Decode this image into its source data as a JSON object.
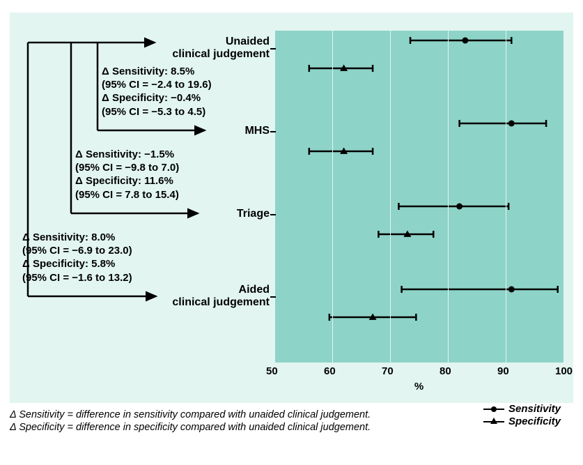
{
  "chart": {
    "type": "forest-plot",
    "outer_bg": "#e2f5f1",
    "plot_bg": "#8ed3c8",
    "grid_color": "#e2f5f1",
    "x_axis": {
      "label": "%",
      "min": 50,
      "max": 100,
      "ticks": [
        50,
        60,
        70,
        80,
        90,
        100
      ],
      "tick_fontsize": 15,
      "label_fontsize": 15
    },
    "groups": [
      {
        "key": "unaided",
        "label_line1": "Unaided",
        "label_line2": "clinical judgement",
        "sens": {
          "est": 83,
          "lo": 73.5,
          "hi": 91
        },
        "spec": {
          "est": 62,
          "lo": 56,
          "hi": 67
        }
      },
      {
        "key": "mhs",
        "label_line1": "MHS",
        "label_line2": "",
        "sens": {
          "est": 91,
          "lo": 82,
          "hi": 97
        },
        "spec": {
          "est": 62,
          "lo": 56,
          "hi": 67
        }
      },
      {
        "key": "triage",
        "label_line1": "Triage",
        "label_line2": "",
        "sens": {
          "est": 82,
          "lo": 71.5,
          "hi": 90.5
        },
        "spec": {
          "est": 73,
          "lo": 68,
          "hi": 77.5
        }
      },
      {
        "key": "aided",
        "label_line1": "Aided",
        "label_line2": "clinical judgement",
        "sens": {
          "est": 91,
          "lo": 72,
          "hi": 99
        },
        "spec": {
          "est": 67,
          "lo": 59.5,
          "hi": 74.5
        }
      }
    ],
    "deltas": [
      {
        "to": "mhs",
        "sens_line": "Δ Sensitivity: 8.5%",
        "sens_ci": "(95% CI = −2.4 to 19.6)",
        "spec_line": "Δ Specificity: −0.4%",
        "spec_ci": "(95% CI = −5.3 to 4.5)"
      },
      {
        "to": "triage",
        "sens_line": "Δ Sensitivity: −1.5%",
        "sens_ci": "(95% CI = −9.8 to 7.0)",
        "spec_line": "Δ Specificity: 11.6%",
        "spec_ci": "(95% CI = 7.8 to 15.4)"
      },
      {
        "to": "aided",
        "sens_line": "Δ Sensitivity: 8.0%",
        "sens_ci": "(95% CI = −6.9 to 23.0)",
        "spec_line": "Δ Specificity: 5.8%",
        "spec_ci": "(95% CI = −1.6 to 13.2)"
      }
    ],
    "legend": {
      "sens": "Sensitivity",
      "spec": "Specificity"
    },
    "footnote_sens": "Δ Sensitivity = difference in sensitivity compared with unaided clinical judgement.",
    "footnote_spec": "Δ Specificity = difference in specificity compared with unaided clinical judgement.",
    "marker_styles": {
      "sens": "circle",
      "spec": "triangle"
    },
    "line_width": 2.5,
    "cap_height": 10,
    "marker_size": 9,
    "font_family": "Segoe UI, Arial, sans-serif",
    "label_fontsize": 16,
    "label_fontweight": 800,
    "delta_fontsize": 15,
    "delta_fontweight": 800
  }
}
